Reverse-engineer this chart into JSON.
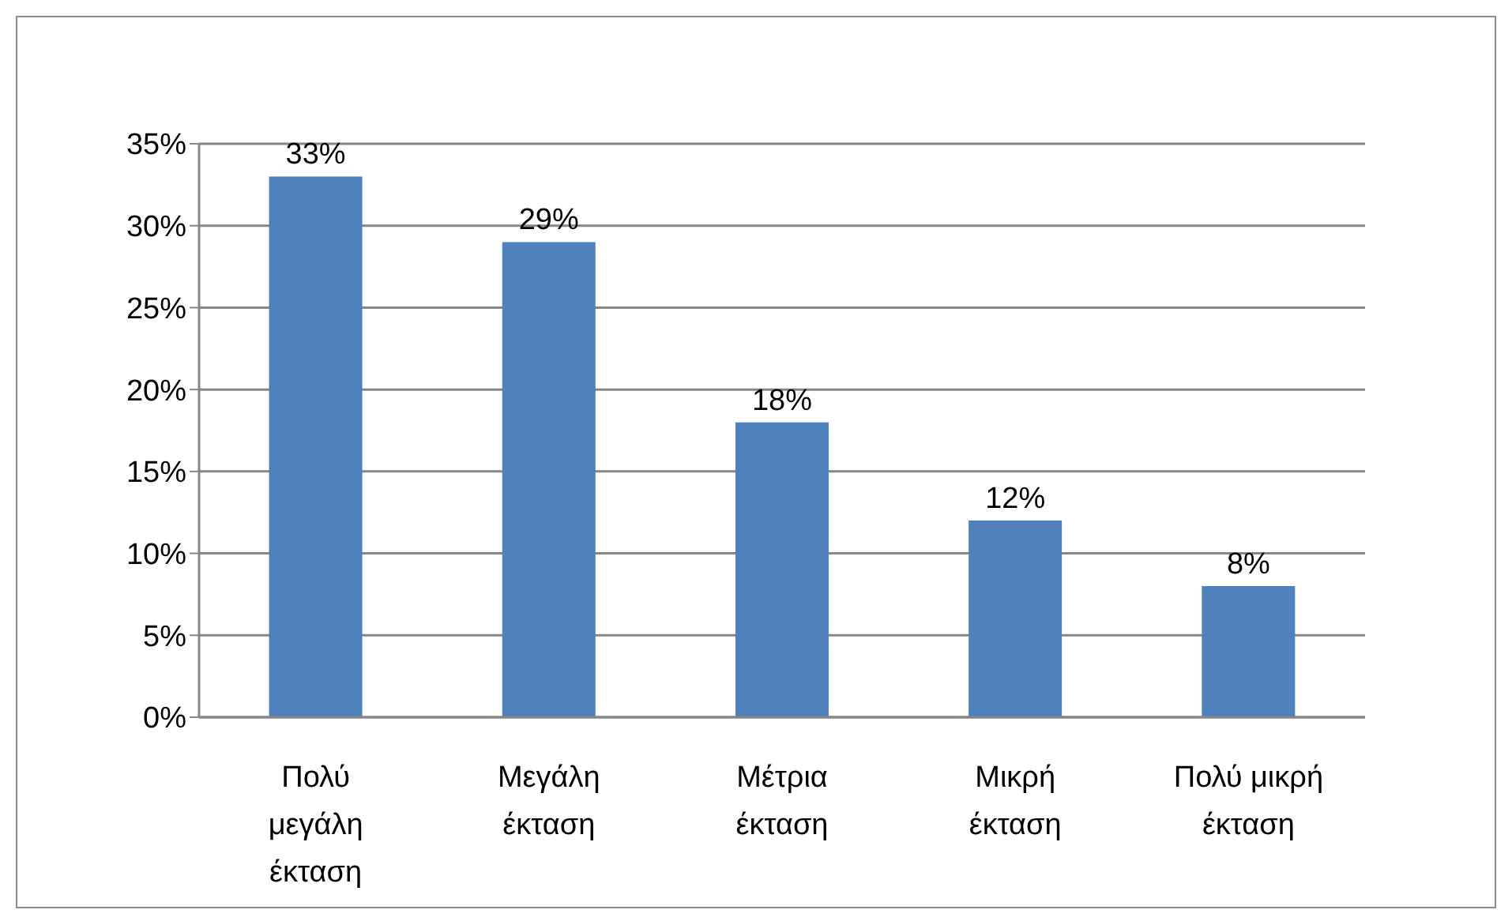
{
  "chart_data": {
    "type": "bar",
    "categories": [
      "Πολύ μεγάλη έκταση",
      "Μεγάλη έκταση",
      "Μέτρια έκταση",
      "Μικρή έκταση",
      "Πολύ μικρή έκταση"
    ],
    "values": [
      33,
      29,
      18,
      12,
      8
    ],
    "value_labels": [
      "33%",
      "29%",
      "18%",
      "12%",
      "8%"
    ],
    "color": "#4f81bd",
    "ylim": [
      0,
      35
    ],
    "yticks": [
      {
        "value": 0,
        "label": "0%"
      },
      {
        "value": 5,
        "label": "5%"
      },
      {
        "value": 10,
        "label": "10%"
      },
      {
        "value": 15,
        "label": "15%"
      },
      {
        "value": 20,
        "label": "20%"
      },
      {
        "value": 25,
        "label": "25%"
      },
      {
        "value": 30,
        "label": "30%"
      },
      {
        "value": 35,
        "label": "35%"
      }
    ],
    "grid": "y"
  }
}
